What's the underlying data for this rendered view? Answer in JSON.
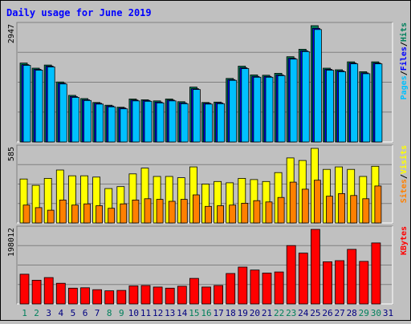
{
  "title": "Daily usage for June 2019",
  "colors": {
    "background": "#c0c0c0",
    "hits": "#00805c",
    "files": "#0000ff",
    "pages": "#00c0ff",
    "visits": "#ffff00",
    "sites": "#ff8000",
    "kbytes": "#ff0000",
    "title": "#0000ff",
    "weekend_day": "#00805c",
    "weekday": "#000080"
  },
  "chart_data": [
    {
      "type": "bar",
      "panel": "hits-files-pages",
      "ymax_label": "2947",
      "ylim": [
        0,
        2947
      ],
      "legend": [
        "Pages",
        "/",
        "Files",
        "/",
        "Hits"
      ],
      "categories": [
        "1",
        "2",
        "3",
        "4",
        "5",
        "6",
        "7",
        "8",
        "9",
        "10",
        "11",
        "12",
        "13",
        "14",
        "15",
        "16",
        "17",
        "18",
        "19",
        "20",
        "21",
        "22",
        "23",
        "24",
        "25",
        "26",
        "27",
        "28",
        "29",
        "30",
        "31"
      ],
      "series": [
        {
          "name": "Hits",
          "values": [
            2000,
            1870,
            1950,
            1520,
            1180,
            1100,
            1000,
            930,
            880,
            1090,
            1070,
            1040,
            1090,
            1020,
            1390,
            1000,
            1010,
            1610,
            1920,
            1700,
            1690,
            1740,
            2160,
            2350,
            2947,
            1870,
            1830,
            2030,
            1780,
            2030,
            0
          ]
        },
        {
          "name": "Files",
          "values": [
            1960,
            1840,
            1920,
            1490,
            1150,
            1070,
            980,
            910,
            860,
            1060,
            1050,
            1010,
            1060,
            990,
            1350,
            980,
            990,
            1580,
            1880,
            1660,
            1660,
            1700,
            2120,
            2310,
            2880,
            1840,
            1800,
            2000,
            1750,
            2000,
            0
          ]
        },
        {
          "name": "Pages",
          "values": [
            1940,
            1820,
            1900,
            1470,
            1130,
            1050,
            960,
            890,
            840,
            1040,
            1030,
            990,
            1040,
            970,
            1330,
            960,
            970,
            1560,
            1860,
            1640,
            1640,
            1680,
            2100,
            2290,
            2850,
            1820,
            1780,
            1980,
            1730,
            1980,
            0
          ]
        }
      ]
    },
    {
      "type": "bar",
      "panel": "visits-sites",
      "ymax_label": "585",
      "ylim": [
        0,
        585
      ],
      "legend": [
        "Sites",
        "/",
        "Visits"
      ],
      "categories": [
        "1",
        "2",
        "3",
        "4",
        "5",
        "6",
        "7",
        "8",
        "9",
        "10",
        "11",
        "12",
        "13",
        "14",
        "15",
        "16",
        "17",
        "18",
        "19",
        "20",
        "21",
        "22",
        "23",
        "24",
        "25",
        "26",
        "27",
        "28",
        "29",
        "30",
        "31"
      ],
      "series": [
        {
          "name": "Visits",
          "values": [
            345,
            295,
            350,
            415,
            370,
            370,
            360,
            270,
            285,
            385,
            430,
            365,
            365,
            355,
            440,
            305,
            325,
            315,
            350,
            340,
            325,
            395,
            510,
            490,
            585,
            420,
            440,
            420,
            365,
            445,
            0
          ]
        },
        {
          "name": "Sites",
          "values": [
            140,
            120,
            100,
            180,
            140,
            150,
            135,
            115,
            150,
            180,
            190,
            185,
            170,
            185,
            220,
            130,
            135,
            140,
            155,
            175,
            165,
            200,
            320,
            265,
            335,
            210,
            230,
            215,
            190,
            290,
            0
          ]
        }
      ]
    },
    {
      "type": "bar",
      "panel": "kbytes",
      "ymax_label": "198012",
      "ylim": [
        0,
        198012
      ],
      "legend": [
        "KBytes"
      ],
      "categories": [
        "1",
        "2",
        "3",
        "4",
        "5",
        "6",
        "7",
        "8",
        "9",
        "10",
        "11",
        "12",
        "13",
        "14",
        "15",
        "16",
        "17",
        "18",
        "19",
        "20",
        "21",
        "22",
        "23",
        "24",
        "25",
        "26",
        "27",
        "28",
        "29",
        "30",
        "31"
      ],
      "series": [
        {
          "name": "KBytes",
          "values": [
            79000,
            63000,
            70000,
            55000,
            42000,
            43000,
            38000,
            35000,
            36000,
            48000,
            49000,
            45000,
            42000,
            47000,
            68000,
            45000,
            49000,
            81000,
            98000,
            90000,
            82000,
            85000,
            155000,
            135000,
            198012,
            112000,
            115000,
            145000,
            113000,
            162000,
            0
          ]
        }
      ]
    }
  ],
  "x_labels": [
    {
      "text": "1",
      "weekend": true
    },
    {
      "text": "2",
      "weekend": true
    },
    {
      "text": "3",
      "weekend": false
    },
    {
      "text": "4",
      "weekend": false
    },
    {
      "text": "5",
      "weekend": false
    },
    {
      "text": "6",
      "weekend": false
    },
    {
      "text": "7",
      "weekend": false
    },
    {
      "text": "8",
      "weekend": true
    },
    {
      "text": "9",
      "weekend": true
    },
    {
      "text": "10",
      "weekend": false
    },
    {
      "text": "11",
      "weekend": false
    },
    {
      "text": "12",
      "weekend": false
    },
    {
      "text": "13",
      "weekend": false
    },
    {
      "text": "14",
      "weekend": false
    },
    {
      "text": "15",
      "weekend": true
    },
    {
      "text": "16",
      "weekend": true
    },
    {
      "text": "17",
      "weekend": false
    },
    {
      "text": "18",
      "weekend": false
    },
    {
      "text": "19",
      "weekend": false
    },
    {
      "text": "20",
      "weekend": false
    },
    {
      "text": "21",
      "weekend": false
    },
    {
      "text": "22",
      "weekend": true
    },
    {
      "text": "23",
      "weekend": true
    },
    {
      "text": "24",
      "weekend": false
    },
    {
      "text": "25",
      "weekend": false
    },
    {
      "text": "26",
      "weekend": false
    },
    {
      "text": "27",
      "weekend": false
    },
    {
      "text": "28",
      "weekend": false
    },
    {
      "text": "29",
      "weekend": true
    },
    {
      "text": "30",
      "weekend": true
    },
    {
      "text": "31",
      "weekend": false
    }
  ]
}
